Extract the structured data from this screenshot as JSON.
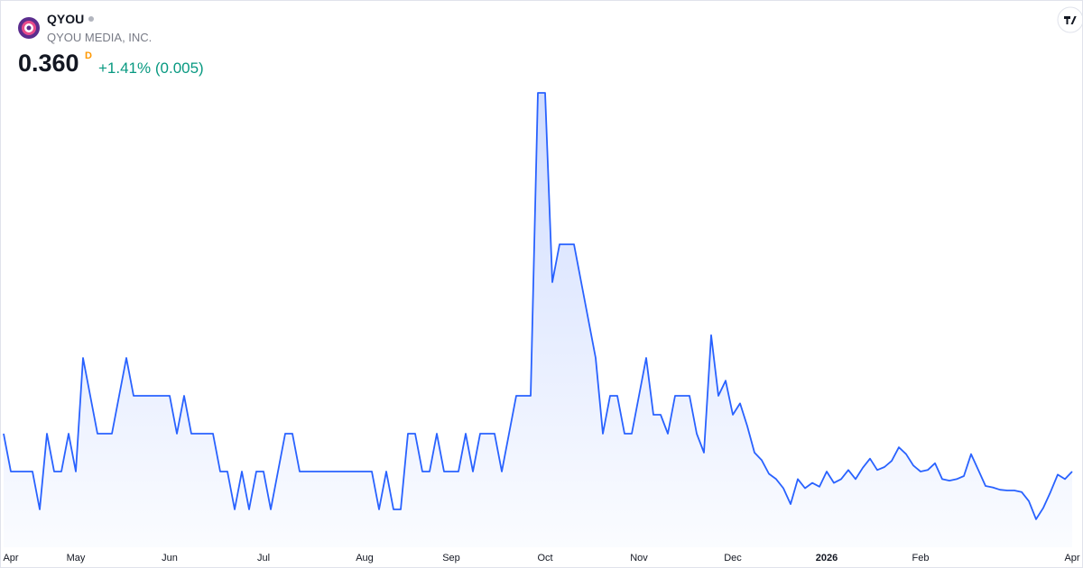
{
  "header": {
    "symbol": "QYOU",
    "name": "QYOU MEDIA, INC.",
    "price": "0.360",
    "interval": "D",
    "change": "+1.41% (0.005)"
  },
  "chart_data": {
    "type": "area",
    "color": "#2962ff",
    "categories": [
      null,
      "Apr",
      null,
      null,
      null,
      null,
      null,
      null,
      null,
      null,
      "May",
      null,
      null,
      null,
      null,
      null,
      null,
      null,
      null,
      null,
      null,
      null,
      null,
      "Jun",
      null,
      null,
      null,
      null,
      null,
      null,
      null,
      null,
      null,
      null,
      null,
      null,
      "Jul",
      null,
      null,
      null,
      null,
      null,
      null,
      null,
      null,
      null,
      null,
      null,
      null,
      null,
      "Aug",
      null,
      null,
      null,
      null,
      null,
      null,
      null,
      null,
      null,
      null,
      null,
      "Sep",
      null,
      null,
      null,
      null,
      null,
      null,
      null,
      null,
      null,
      null,
      null,
      null,
      "Oct",
      null,
      null,
      null,
      null,
      null,
      null,
      null,
      null,
      null,
      null,
      null,
      null,
      "Nov",
      null,
      null,
      null,
      null,
      null,
      null,
      null,
      null,
      null,
      null,
      null,
      null,
      "Dec",
      null,
      null,
      null,
      null,
      null,
      null,
      null,
      null,
      null,
      null,
      null,
      null,
      "2026",
      null,
      null,
      null,
      null,
      null,
      null,
      null,
      null,
      null,
      null,
      null,
      null,
      "Feb",
      null,
      null,
      null,
      null,
      null,
      null,
      null,
      null,
      null,
      null,
      null,
      null,
      null,
      null,
      null,
      null,
      null,
      null,
      null,
      null,
      "Apr"
    ],
    "values": [
      0.365,
      0.36,
      0.36,
      0.36,
      0.36,
      0.355,
      0.365,
      0.36,
      0.36,
      0.365,
      0.36,
      0.375,
      0.37,
      0.365,
      0.365,
      0.365,
      0.37,
      0.375,
      0.37,
      0.37,
      0.37,
      0.37,
      0.37,
      0.37,
      0.365,
      0.37,
      0.365,
      0.365,
      0.365,
      0.365,
      0.36,
      0.36,
      0.355,
      0.36,
      0.355,
      0.36,
      0.36,
      0.355,
      0.36,
      0.365,
      0.365,
      0.36,
      0.36,
      0.36,
      0.36,
      0.36,
      0.36,
      0.36,
      0.36,
      0.36,
      0.36,
      0.36,
      0.355,
      0.36,
      0.355,
      0.355,
      0.365,
      0.365,
      0.36,
      0.36,
      0.365,
      0.36,
      0.36,
      0.36,
      0.365,
      0.36,
      0.365,
      0.365,
      0.365,
      0.36,
      0.365,
      0.37,
      0.37,
      0.37,
      0.41,
      0.41,
      0.385,
      0.39,
      0.39,
      0.39,
      0.385,
      0.38,
      0.375,
      0.365,
      0.37,
      0.37,
      0.365,
      0.365,
      0.37,
      0.375,
      0.3675,
      0.3675,
      0.365,
      0.37,
      0.37,
      0.37,
      0.365,
      0.3625,
      0.378,
      0.37,
      0.372,
      0.3675,
      0.369,
      0.366,
      0.3625,
      0.3615,
      0.3597,
      0.359,
      0.3578,
      0.3557,
      0.359,
      0.3578,
      0.3585,
      0.358,
      0.36,
      0.3585,
      0.359,
      0.3602,
      0.359,
      0.3605,
      0.3617,
      0.3602,
      0.3606,
      0.3614,
      0.3632,
      0.3623,
      0.3608,
      0.36,
      0.3602,
      0.3611,
      0.359,
      0.3588,
      0.359,
      0.3594,
      0.3623,
      0.3602,
      0.3581,
      0.3579,
      0.3576,
      0.3575,
      0.3575,
      0.3573,
      0.3561,
      0.3537,
      0.3552,
      0.3573,
      0.3596,
      0.359,
      0.36
    ],
    "ylim": [
      0.35,
      0.415
    ]
  }
}
